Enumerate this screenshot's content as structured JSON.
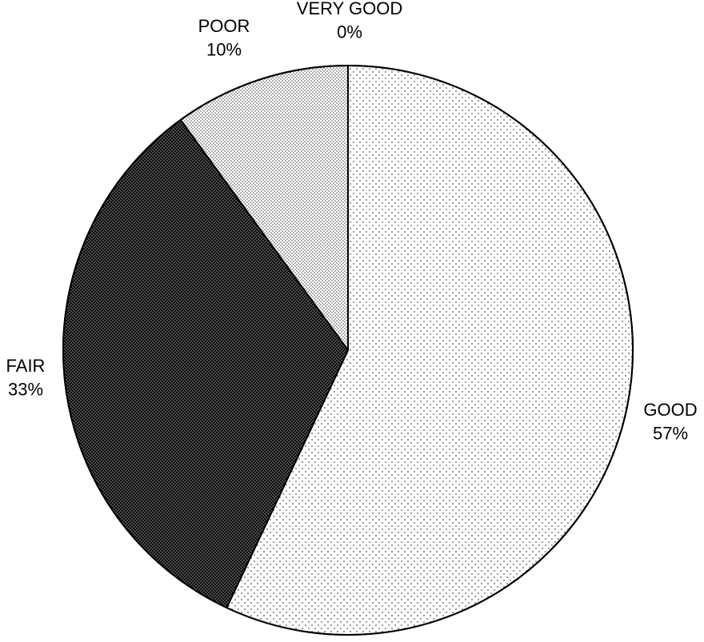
{
  "chart_data": {
    "type": "pie",
    "start_angle_deg": 0,
    "direction": "clockwise",
    "slices": [
      {
        "name": "GOOD",
        "value": 57,
        "label": "57%",
        "pattern": "light-dots"
      },
      {
        "name": "FAIR",
        "value": 33,
        "label": "33%",
        "pattern": "dense-dark"
      },
      {
        "name": "POOR",
        "value": 10,
        "label": "10%",
        "pattern": "medium-dots"
      },
      {
        "name": "VERY GOOD",
        "value": 0,
        "label": "0%",
        "pattern": "none"
      }
    ],
    "title": "",
    "legend": "none"
  }
}
